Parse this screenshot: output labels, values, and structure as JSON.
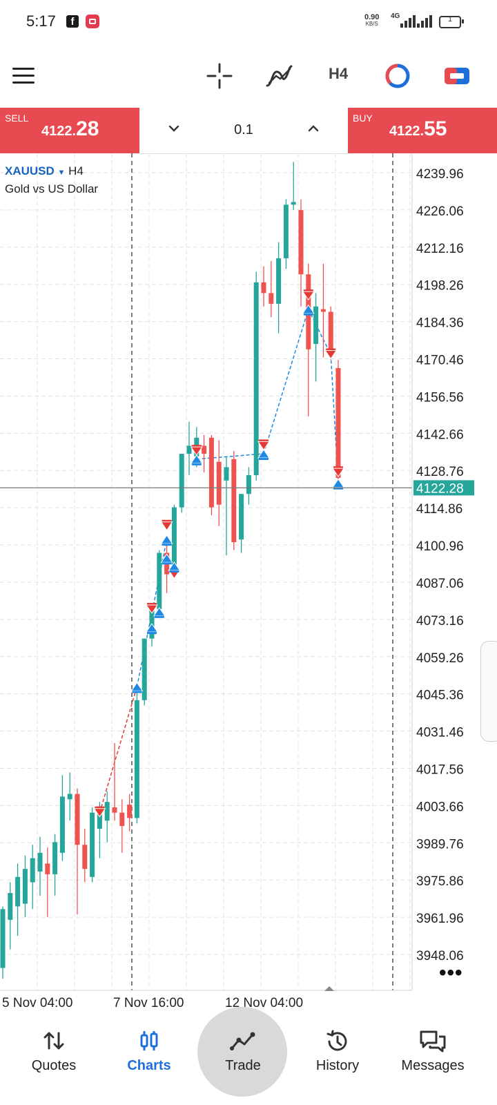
{
  "status_bar": {
    "time": "5:17",
    "net_speed": "0.90",
    "net_speed_unit": "KB/S",
    "network": "4G",
    "battery": "1"
  },
  "toolbar": {
    "menu_icon": "hamburger-menu-icon",
    "crosshair_icon": "crosshair-icon",
    "indicators_icon": "indicators-icon",
    "timeframe": "H4",
    "objects_icon": "objects-icon",
    "one_click_icon": "one-click-trading-icon"
  },
  "trade_bar": {
    "sell_label": "SELL",
    "sell_price_small": "4122.",
    "sell_price_big": "28",
    "buy_label": "BUY",
    "buy_price_small": "4122.",
    "buy_price_big": "55",
    "lot": "0.1",
    "colors": {
      "sell": "#e84a51",
      "buy": "#e84a51"
    }
  },
  "symbol": {
    "name": "XAUUSD",
    "caret": "▼",
    "timeframe": "H4",
    "description": "Gold vs US Dollar"
  },
  "chart_data": {
    "type": "candlestick",
    "y_ticks": [
      "4239.96",
      "4226.06",
      "4212.16",
      "4198.26",
      "4184.36",
      "4170.46",
      "4156.56",
      "4142.66",
      "4128.76",
      "4114.86",
      "4100.96",
      "4087.06",
      "4073.16",
      "4059.26",
      "4045.36",
      "4031.46",
      "4017.56",
      "4003.66",
      "3989.76",
      "3975.86",
      "3961.96",
      "3948.06"
    ],
    "x_ticks": [
      "5 Nov 04:00",
      "7 Nov 16:00",
      "12 Nov 04:00"
    ],
    "current_price": "4122.28",
    "ylim": [
      3942,
      4246
    ],
    "colors": {
      "up": "#26a69a",
      "down": "#ef5350",
      "buy_marker": "#1e88e5",
      "sell_marker": "#e53935",
      "price_line": "#777777",
      "price_label": "#26a69a"
    },
    "candles": [
      {
        "o": 3943,
        "h": 3966,
        "l": 3939,
        "c": 3965
      },
      {
        "o": 3961,
        "h": 3975,
        "l": 3950,
        "c": 3971
      },
      {
        "o": 3966,
        "h": 3982,
        "l": 3955,
        "c": 3977
      },
      {
        "o": 3967,
        "h": 3985,
        "l": 3962,
        "c": 3980
      },
      {
        "o": 3975,
        "h": 3989,
        "l": 3965,
        "c": 3984
      },
      {
        "o": 3979,
        "h": 3992,
        "l": 3970,
        "c": 3986
      },
      {
        "o": 3982,
        "h": 3988,
        "l": 3962,
        "c": 3978
      },
      {
        "o": 3978,
        "h": 3993,
        "l": 3970,
        "c": 3990
      },
      {
        "o": 3986,
        "h": 4015,
        "l": 3983,
        "c": 4007
      },
      {
        "o": 4006,
        "h": 4016,
        "l": 3998,
        "c": 4008
      },
      {
        "o": 4008,
        "h": 4010,
        "l": 3963,
        "c": 3989
      },
      {
        "o": 3989,
        "h": 3995,
        "l": 3975,
        "c": 3980
      },
      {
        "o": 3977,
        "h": 4003,
        "l": 3975,
        "c": 4001
      },
      {
        "o": 3995,
        "h": 4005,
        "l": 3984,
        "c": 4003
      },
      {
        "o": 3998,
        "h": 4009,
        "l": 3990,
        "c": 4005
      },
      {
        "o": 4003,
        "h": 4027,
        "l": 3998,
        "c": 4001
      },
      {
        "o": 4001,
        "h": 4006,
        "l": 3986,
        "c": 3996
      },
      {
        "o": 4004,
        "h": 4008,
        "l": 3994,
        "c": 3999
      },
      {
        "o": 3999,
        "h": 4047,
        "l": 3997,
        "c": 4043
      },
      {
        "o": 4043,
        "h": 4066,
        "l": 4041,
        "c": 4066
      },
      {
        "o": 4066,
        "h": 4078,
        "l": 4063,
        "c": 4077
      },
      {
        "o": 4077,
        "h": 4099,
        "l": 4075,
        "c": 4098
      },
      {
        "o": 4098,
        "h": 4104,
        "l": 4083,
        "c": 4090
      },
      {
        "o": 4090,
        "h": 4116,
        "l": 4089,
        "c": 4115
      },
      {
        "o": 4115,
        "h": 4135,
        "l": 4113,
        "c": 4135
      },
      {
        "o": 4135,
        "h": 4147,
        "l": 4127,
        "c": 4138
      },
      {
        "o": 4134,
        "h": 4145,
        "l": 4130,
        "c": 4141
      },
      {
        "o": 4138,
        "h": 4142,
        "l": 4128,
        "c": 4135
      },
      {
        "o": 4141,
        "h": 4142,
        "l": 4112,
        "c": 4115
      },
      {
        "o": 4132,
        "h": 4140,
        "l": 4108,
        "c": 4116
      },
      {
        "o": 4125,
        "h": 4134,
        "l": 4097,
        "c": 4130
      },
      {
        "o": 4133,
        "h": 4136,
        "l": 4099,
        "c": 4102
      },
      {
        "o": 4103,
        "h": 4120,
        "l": 4098,
        "c": 4120
      },
      {
        "o": 4120,
        "h": 4130,
        "l": 4116,
        "c": 4127
      },
      {
        "o": 4127,
        "h": 4203,
        "l": 4125,
        "c": 4199
      },
      {
        "o": 4199,
        "h": 4205,
        "l": 4190,
        "c": 4195
      },
      {
        "o": 4195,
        "h": 4207,
        "l": 4186,
        "c": 4191
      },
      {
        "o": 4191,
        "h": 4214,
        "l": 4180,
        "c": 4208
      },
      {
        "o": 4208,
        "h": 4230,
        "l": 4204,
        "c": 4228
      },
      {
        "o": 4228,
        "h": 4244,
        "l": 4226,
        "c": 4229
      },
      {
        "o": 4226,
        "h": 4230,
        "l": 4190,
        "c": 4202
      },
      {
        "o": 4202,
        "h": 4206,
        "l": 4149,
        "c": 4174
      },
      {
        "o": 4176,
        "h": 4195,
        "l": 4162,
        "c": 4190
      },
      {
        "o": 4189,
        "h": 4206,
        "l": 4171,
        "c": 4188
      },
      {
        "o": 4188,
        "h": 4190,
        "l": 4170,
        "c": 4173
      },
      {
        "o": 4167,
        "h": 4170,
        "l": 4123,
        "c": 4126
      }
    ],
    "markers": [
      {
        "i": 13,
        "p": 4001,
        "side": "sell"
      },
      {
        "i": 18,
        "p": 4048,
        "side": "buy"
      },
      {
        "i": 20,
        "p": 4077,
        "side": "sell"
      },
      {
        "i": 20,
        "p": 4070,
        "side": "buy"
      },
      {
        "i": 21,
        "p": 4076,
        "side": "buy"
      },
      {
        "i": 22,
        "p": 4108,
        "side": "sell"
      },
      {
        "i": 22,
        "p": 4103,
        "side": "buy"
      },
      {
        "i": 22,
        "p": 4096,
        "side": "buy"
      },
      {
        "i": 23,
        "p": 4090,
        "side": "sell"
      },
      {
        "i": 23,
        "p": 4093,
        "side": "buy"
      },
      {
        "i": 26,
        "p": 4136,
        "side": "sell"
      },
      {
        "i": 26,
        "p": 4133,
        "side": "buy"
      },
      {
        "i": 35,
        "p": 4138,
        "side": "sell"
      },
      {
        "i": 35,
        "p": 4135,
        "side": "buy"
      },
      {
        "i": 41,
        "p": 4194,
        "side": "sell"
      },
      {
        "i": 41,
        "p": 4189,
        "side": "buy"
      },
      {
        "i": 44,
        "p": 4172,
        "side": "sell"
      },
      {
        "i": 45,
        "p": 4128,
        "side": "sell"
      },
      {
        "i": 45,
        "p": 4124,
        "side": "buy"
      }
    ],
    "trade_lines": [
      {
        "from": [
          13,
          4001
        ],
        "to": [
          18,
          4048
        ],
        "color": "#e53935"
      },
      {
        "from": [
          18,
          4048
        ],
        "to": [
          22,
          4103
        ],
        "color": "#1e88e5"
      },
      {
        "from": [
          26,
          4133
        ],
        "to": [
          35,
          4135
        ],
        "color": "#1e88e5"
      },
      {
        "from": [
          35,
          4135
        ],
        "to": [
          41,
          4189
        ],
        "color": "#1e88e5"
      },
      {
        "from": [
          41,
          4189
        ],
        "to": [
          44,
          4172
        ],
        "color": "#1e88e5"
      },
      {
        "from": [
          44,
          4172
        ],
        "to": [
          45,
          4124
        ],
        "color": "#1e88e5"
      }
    ],
    "period_separators_after": [
      17,
      52
    ]
  },
  "nav": {
    "items": [
      {
        "label": "Quotes",
        "icon": "quotes-icon"
      },
      {
        "label": "Charts",
        "icon": "charts-icon"
      },
      {
        "label": "Trade",
        "icon": "trade-icon"
      },
      {
        "label": "History",
        "icon": "history-icon"
      },
      {
        "label": "Messages",
        "icon": "messages-icon"
      }
    ],
    "active": "Charts",
    "active_color": "#1e6fd9"
  }
}
